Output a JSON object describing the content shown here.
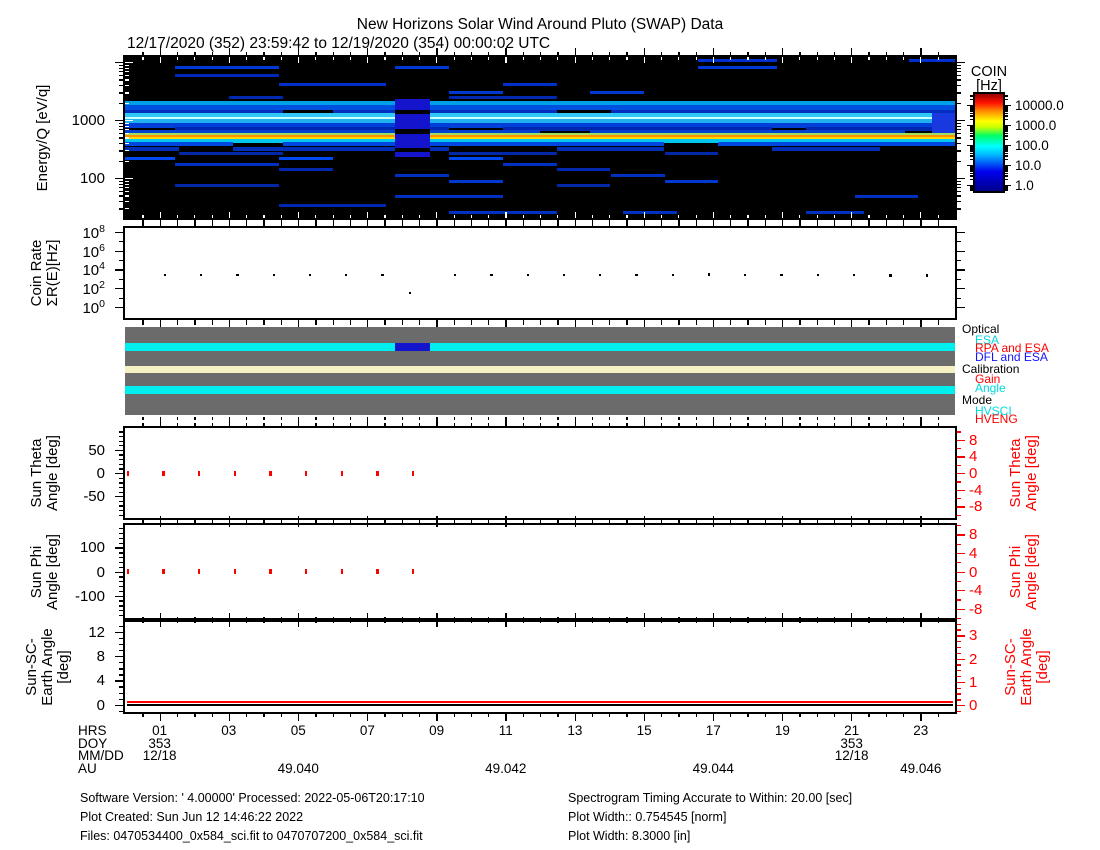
{
  "title": "New Horizons Solar Wind Around Pluto (SWAP) Data",
  "subtitle": "12/17/2020 (352) 23:59:42 to 12/19/2020 (354) 00:00:02 UTC",
  "colorbar": {
    "title_lines": [
      "COIN",
      "[Hz]"
    ],
    "scale": "log",
    "tick_labels": [
      "10000.0",
      "1000.0",
      "100.0",
      "10.0",
      "1.0"
    ],
    "tick_logs": [
      4,
      3,
      2,
      1,
      0
    ],
    "log_range": [
      -0.3,
      4.55
    ],
    "gradient_bottom_to_top": [
      "#00008B",
      "#0000EE",
      "#00BFFF",
      "#00FFFF",
      "#00FF66",
      "#CCFF00",
      "#FFFF00",
      "#FF9000",
      "#FF1000",
      "#990000"
    ],
    "gradient_stops_pct": [
      0,
      20,
      38,
      46,
      57,
      66,
      72,
      82,
      91,
      100
    ]
  },
  "chart_data": [
    {
      "id": "spectrogram",
      "type": "heatmap",
      "ylabel": "Energy/Q [eV/q]",
      "yscale": "log",
      "ylog_range": [
        1.31,
        4.086
      ],
      "ytick_majors": [
        {
          "log": 2,
          "label": "100"
        },
        {
          "log": 3,
          "label": "1000"
        },
        {
          "log": 4,
          "label": ""
        }
      ],
      "zlabel": "COIN [Hz]",
      "background": "#000000",
      "bands": [
        {
          "e": 10500,
          "h": 3,
          "c": "#0030D0",
          "x": [
            [
              0.69,
              0.785
            ],
            [
              0.945,
              1.0
            ]
          ]
        },
        {
          "e": 8200,
          "h": 3,
          "c": "#0038D8",
          "x": [
            [
              0.06,
              0.185
            ],
            [
              0.325,
              0.39
            ],
            [
              0.69,
              0.785
            ]
          ]
        },
        {
          "e": 5800,
          "h": 3,
          "c": "#0028B8",
          "x": [
            [
              0.06,
              0.185
            ]
          ]
        },
        {
          "e": 4100,
          "h": 3,
          "c": "#0030C8",
          "x": [
            [
              0.185,
              0.315
            ],
            [
              0.455,
              0.52
            ]
          ]
        },
        {
          "e": 3000,
          "h": 3,
          "c": "#0038D0",
          "x": [
            [
              0.39,
              0.455
            ],
            [
              0.56,
              0.625
            ]
          ]
        },
        {
          "e": 2450,
          "h": 3,
          "c": "#0028B0",
          "x": [
            [
              0.125,
              0.19
            ],
            [
              0.39,
              0.52
            ]
          ]
        },
        {
          "e": 1950,
          "h": 5,
          "c": "#00A0E8",
          "x": [
            [
              0,
              1
            ]
          ]
        },
        {
          "e": 1650,
          "h": 5,
          "c": "#0050E0",
          "x": [
            [
              0,
              1
            ]
          ]
        },
        {
          "e": 1400,
          "h": 4,
          "c": "#0030C0",
          "x": [
            [
              0,
              0.19
            ],
            [
              0.25,
              0.52
            ],
            [
              0.585,
              1
            ]
          ]
        },
        {
          "e": 1180,
          "h": 5,
          "c": "#30C8F8",
          "x": [
            [
              0,
              1
            ]
          ]
        },
        {
          "e": 1050,
          "h": 3,
          "c": "#C8FFFF",
          "x": [
            [
              0,
              1
            ]
          ]
        },
        {
          "e": 950,
          "h": 4,
          "c": "#20B0F0",
          "x": [
            [
              0,
              1
            ]
          ]
        },
        {
          "e": 820,
          "h": 5,
          "c": "#0040D8",
          "x": [
            [
              0,
              1
            ]
          ]
        },
        {
          "e": 700,
          "h": 4,
          "c": "#0028B0",
          "x": [
            [
              0.06,
              0.39
            ],
            [
              0.455,
              0.78
            ],
            [
              0.82,
              1
            ]
          ]
        },
        {
          "e": 620,
          "h": 4,
          "c": "#0040D0",
          "x": [
            [
              0,
              0.5
            ],
            [
              0.56,
              0.94
            ]
          ]
        },
        {
          "e": 560,
          "h": 3,
          "c": "#9BE060",
          "x": [
            [
              0,
              1
            ]
          ]
        },
        {
          "e": 530,
          "h": 3,
          "c": "#FFE000",
          "x": [
            [
              0,
              1
            ]
          ]
        },
        {
          "e": 505,
          "h": 4,
          "c": "#FF9000",
          "x": [
            [
              0,
              1
            ]
          ]
        },
        {
          "e": 478,
          "h": 3,
          "c": "#FFD800",
          "x": [
            [
              0,
              1
            ]
          ]
        },
        {
          "e": 430,
          "h": 4,
          "c": "#00C8F0",
          "x": [
            [
              0,
              1
            ]
          ]
        },
        {
          "e": 380,
          "h": 4,
          "c": "#0048E0",
          "x": [
            [
              0,
              0.13
            ],
            [
              0.19,
              0.325
            ],
            [
              0.368,
              0.65
            ],
            [
              0.715,
              1
            ]
          ]
        },
        {
          "e": 320,
          "h": 4,
          "c": "#0030B8",
          "x": [
            [
              0,
              0.065
            ],
            [
              0.13,
              0.39
            ],
            [
              0.52,
              0.65
            ],
            [
              0.78,
              0.91
            ]
          ]
        },
        {
          "e": 270,
          "h": 3,
          "c": "#0028A8",
          "x": [
            [
              0.065,
              0.19
            ],
            [
              0.39,
              0.52
            ],
            [
              0.65,
              0.715
            ]
          ]
        },
        {
          "e": 215,
          "h": 3,
          "c": "#0048F0",
          "x": [
            [
              0,
              0.06
            ],
            [
              0.185,
              0.25
            ],
            [
              0.39,
              0.455
            ]
          ]
        },
        {
          "e": 170,
          "h": 3,
          "c": "#0030C0",
          "x": [
            [
              0.06,
              0.185
            ],
            [
              0.455,
              0.52
            ]
          ]
        },
        {
          "e": 140,
          "h": 3,
          "c": "#0028B0",
          "x": [
            [
              0.185,
              0.25
            ],
            [
              0.52,
              0.585
            ]
          ]
        },
        {
          "e": 110,
          "h": 3,
          "c": "#0030C0",
          "x": [
            [
              0.325,
              0.39
            ],
            [
              0.585,
              0.65
            ]
          ]
        },
        {
          "e": 88,
          "h": 3,
          "c": "#0038D0",
          "x": [
            [
              0.39,
              0.455
            ],
            [
              0.65,
              0.715
            ]
          ]
        },
        {
          "e": 73,
          "h": 3,
          "c": "#0028A8",
          "x": [
            [
              0.06,
              0.185
            ],
            [
              0.52,
              0.585
            ]
          ]
        },
        {
          "e": 48,
          "h": 3,
          "c": "#0030C0",
          "x": [
            [
              0.325,
              0.455
            ],
            [
              0.88,
              0.955
            ]
          ]
        },
        {
          "e": 34,
          "h": 3,
          "c": "#0028B0",
          "x": [
            [
              0.185,
              0.315
            ]
          ]
        },
        {
          "e": 25,
          "h": 3,
          "c": "#0030C0",
          "x": [
            [
              0.39,
              0.52
            ],
            [
              0.6,
              0.665
            ],
            [
              0.82,
              0.89
            ]
          ]
        }
      ],
      "gap_column": {
        "x": [
          0.325,
          0.368
        ],
        "e": [
          230,
          2300
        ],
        "color": "#1414CC",
        "black_rows": [
          {
            "e": 1400,
            "h": 4
          },
          {
            "e": 640,
            "h": 5
          },
          {
            "e": 300,
            "h": 4
          }
        ]
      },
      "right_column": {
        "x": [
          0.972,
          1.0
        ],
        "e": [
          600,
          1300
        ],
        "color": "#1838E0"
      }
    },
    {
      "id": "coin_rate",
      "type": "scatter",
      "ylabel_lines": [
        "Coin Rate",
        "ΣR(E)[Hz]"
      ],
      "yscale": "log",
      "ylog_range": [
        -1.17,
        8.4
      ],
      "ytick_exponents_major": [
        0,
        2,
        4,
        6,
        8
      ],
      "ytick_exponents_minor": [
        1,
        3,
        5,
        7
      ],
      "marker_color": "#000000",
      "points": [
        {
          "x": 0.048,
          "log": 3.42
        },
        {
          "x": 0.0917,
          "log": 3.4
        },
        {
          "x": 0.1354,
          "log": 3.43
        },
        {
          "x": 0.1791,
          "log": 3.39
        },
        {
          "x": 0.2228,
          "log": 3.41
        },
        {
          "x": 0.2665,
          "log": 3.4
        },
        {
          "x": 0.3102,
          "log": 3.39
        },
        {
          "x": 0.343,
          "log": 1.5
        },
        {
          "x": 0.3976,
          "log": 3.4
        },
        {
          "x": 0.4413,
          "log": 3.41
        },
        {
          "x": 0.485,
          "log": 3.39
        },
        {
          "x": 0.5287,
          "log": 3.43
        },
        {
          "x": 0.5724,
          "log": 3.4
        },
        {
          "x": 0.6161,
          "log": 3.41
        },
        {
          "x": 0.6598,
          "log": 3.45
        },
        {
          "x": 0.7035,
          "log": 3.46
        },
        {
          "x": 0.7472,
          "log": 3.44
        },
        {
          "x": 0.7909,
          "log": 3.43
        },
        {
          "x": 0.8346,
          "log": 3.42
        },
        {
          "x": 0.8783,
          "log": 3.39
        },
        {
          "x": 0.922,
          "log": 3.36
        },
        {
          "x": 0.9657,
          "log": 3.35
        }
      ]
    },
    {
      "id": "status_bars",
      "type": "bands",
      "block_color": "#6B6B6B",
      "stripes": [
        {
          "name": "optical-esa",
          "y0": 16,
          "y1": 24,
          "color": "#00EEEE"
        },
        {
          "name": "calibration-band",
          "y0": 39,
          "y1": 46,
          "color": "#F6F1C4"
        },
        {
          "name": "mode-hvsci",
          "y0": 59,
          "y1": 67,
          "color": "#00EEEE"
        }
      ],
      "overlays": [
        {
          "name": "optical-dfl-and-esa",
          "stripe": 0,
          "x": [
            0.325,
            0.368
          ],
          "color": "#1414CC"
        }
      ]
    },
    {
      "id": "sun_theta",
      "type": "scatter",
      "ylabel_lines": [
        "Sun Theta",
        "Angle [deg]"
      ],
      "right_label_lines": [
        "Sun Theta",
        "Angle [deg]"
      ],
      "ylim": [
        -97,
        97
      ],
      "yticks_major": [
        -50,
        0,
        50
      ],
      "yminor_step": 10,
      "right_ylim": [
        -10.8,
        10.8
      ],
      "right_ticks_major": [
        -8,
        -4,
        0,
        4,
        8
      ],
      "right_minor_step": 2,
      "marker_color": "#FF0000",
      "points_x": [
        0.002,
        0.045,
        0.088,
        0.131,
        0.174,
        0.217,
        0.26,
        0.303,
        0.346
      ],
      "points_value": 0
    },
    {
      "id": "sun_phi",
      "type": "scatter",
      "ylabel_lines": [
        "Sun Phi",
        "Angle [deg]"
      ],
      "right_label_lines": [
        "Sun Phi",
        "Angle [deg]"
      ],
      "ylim": [
        -193,
        193
      ],
      "yticks_major": [
        -100,
        0,
        100
      ],
      "yminor_step": 20,
      "right_ylim": [
        -10,
        10
      ],
      "right_ticks_major": [
        -8,
        -4,
        0,
        4,
        8
      ],
      "right_minor_step": 2,
      "marker_color": "#FF0000",
      "points_x": [
        0.002,
        0.045,
        0.088,
        0.131,
        0.174,
        0.217,
        0.26,
        0.303,
        0.346
      ],
      "points_value": 0
    },
    {
      "id": "sun_sc_earth",
      "type": "line",
      "ylabel_lines": [
        "Sun-SC-",
        "Earth Angle",
        "[deg]"
      ],
      "right_label_lines": [
        "Sun-SC-",
        "Earth Angle",
        "[deg]"
      ],
      "ylim": [
        -1.2,
        13.6
      ],
      "yticks_major": [
        0,
        4,
        8,
        12
      ],
      "yminor_step": 1,
      "right_ylim": [
        -0.3,
        3.57
      ],
      "right_ticks_major": [
        0,
        1,
        2,
        3
      ],
      "right_minor_step": 0.25,
      "lines": [
        {
          "name": "earth-angle-red-line",
          "color": "#FF0000",
          "value": 0.6
        },
        {
          "name": "earth-angle-black-line",
          "color": "#000000",
          "value": 0.05
        }
      ]
    }
  ],
  "status_legend": {
    "groups": [
      {
        "label": "Optical",
        "color": "#000000",
        "items": [
          {
            "label": "ESA",
            "color": "#00D8E0"
          },
          {
            "label": "RPA and ESA",
            "color": "#FF0000"
          },
          {
            "label": "DFL and ESA",
            "color": "#1414FF"
          }
        ]
      },
      {
        "label": "Calibration",
        "color": "#000000",
        "items": [
          {
            "label": "Gain",
            "color": "#FF0000"
          },
          {
            "label": "Angle",
            "color": "#00D8E0"
          }
        ]
      },
      {
        "label": "Mode",
        "color": "#000000",
        "items": [
          {
            "label": "HVSCI",
            "color": "#00D8E0"
          },
          {
            "label": "HVENG",
            "color": "#FF0000"
          }
        ]
      }
    ]
  },
  "xaxis": {
    "major_every_hours": 2,
    "minor_every_hours": 0.5,
    "rows": [
      {
        "label": "HRS",
        "entries": [
          {
            "f": 0.0417,
            "text": "01"
          },
          {
            "f": 0.125,
            "text": "03"
          },
          {
            "f": 0.2087,
            "text": "05"
          },
          {
            "f": 0.292,
            "text": "07"
          },
          {
            "f": 0.3754,
            "text": "09"
          },
          {
            "f": 0.4588,
            "text": "11"
          },
          {
            "f": 0.5421,
            "text": "13"
          },
          {
            "f": 0.6254,
            "text": "15"
          },
          {
            "f": 0.7088,
            "text": "17"
          },
          {
            "f": 0.7921,
            "text": "19"
          },
          {
            "f": 0.8755,
            "text": "21"
          },
          {
            "f": 0.9588,
            "text": "23"
          }
        ]
      },
      {
        "label": "DOY",
        "entries": [
          {
            "f": 0.0417,
            "text": "353"
          },
          {
            "f": 0.8755,
            "text": "353"
          }
        ]
      },
      {
        "label": "MM/DD",
        "entries": [
          {
            "f": 0.0417,
            "text": "12/18"
          },
          {
            "f": 0.8755,
            "text": "12/18"
          }
        ]
      },
      {
        "label": "AU",
        "entries": [
          {
            "f": 0.2087,
            "text": "49.040"
          },
          {
            "f": 0.4588,
            "text": "49.042"
          },
          {
            "f": 0.7088,
            "text": "49.044"
          },
          {
            "f": 0.9588,
            "text": "49.046"
          }
        ]
      }
    ]
  },
  "footer": {
    "left": [
      "Software Version:  ' 4.00000'  Processed: 2022-05-06T20:17:10",
      "Plot Created: Sun Jun 12 14:46:22 2022",
      "Files: 0470534400_0x584_sci.fit to 0470707200_0x584_sci.fit"
    ],
    "right": [
      "Spectrogram Timing Accurate to Within: 20.00 [sec]",
      "Plot Width:: 0.754545 [norm]",
      "Plot Width: 8.3000 [in]"
    ]
  }
}
